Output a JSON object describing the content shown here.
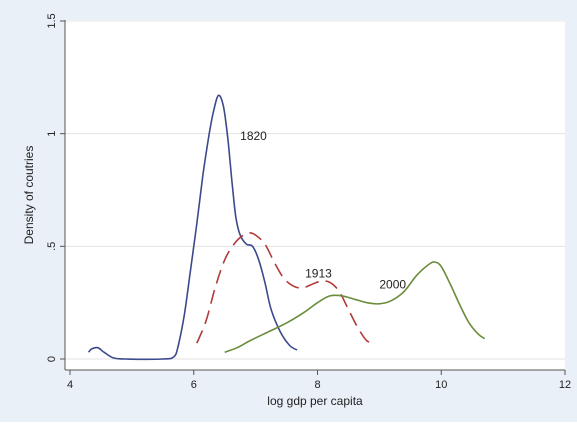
{
  "chart_data": {
    "type": "line",
    "title": "",
    "xlabel": "log gdp per capita",
    "ylabel": "Density of coutries",
    "xlim": [
      4,
      12
    ],
    "ylim": [
      0,
      1.5
    ],
    "x_ticks": [
      4,
      6,
      8,
      10,
      12
    ],
    "y_ticks": [
      0,
      0.5,
      1,
      1.5
    ],
    "x_tick_labels": [
      "4",
      "6",
      "8",
      "10",
      "12"
    ],
    "y_tick_labels": [
      "0",
      ".5",
      "1",
      "1.5"
    ],
    "grid": "horizontal",
    "legend": "none",
    "series": [
      {
        "name": "1820",
        "color": "#3b4a8c",
        "dash": "solid",
        "label_at": [
          6.75,
          0.99
        ],
        "points": [
          [
            4.3,
            0.03
          ],
          [
            4.35,
            0.045
          ],
          [
            4.45,
            0.05
          ],
          [
            4.55,
            0.03
          ],
          [
            4.7,
            0.005
          ],
          [
            4.9,
            0
          ],
          [
            5.5,
            0
          ],
          [
            5.68,
            0.01
          ],
          [
            5.75,
            0.06
          ],
          [
            5.85,
            0.2
          ],
          [
            5.95,
            0.4
          ],
          [
            6.05,
            0.6
          ],
          [
            6.15,
            0.82
          ],
          [
            6.25,
            1.0
          ],
          [
            6.32,
            1.1
          ],
          [
            6.4,
            1.17
          ],
          [
            6.48,
            1.12
          ],
          [
            6.55,
            0.98
          ],
          [
            6.62,
            0.78
          ],
          [
            6.68,
            0.63
          ],
          [
            6.75,
            0.55
          ],
          [
            6.85,
            0.51
          ],
          [
            6.95,
            0.5
          ],
          [
            7.05,
            0.44
          ],
          [
            7.15,
            0.34
          ],
          [
            7.25,
            0.22
          ],
          [
            7.4,
            0.12
          ],
          [
            7.55,
            0.06
          ],
          [
            7.67,
            0.04
          ]
        ]
      },
      {
        "name": "1913",
        "color": "#b23a3a",
        "dash": "dashed",
        "label_at": [
          7.8,
          0.38
        ],
        "points": [
          [
            6.05,
            0.07
          ],
          [
            6.2,
            0.17
          ],
          [
            6.35,
            0.32
          ],
          [
            6.5,
            0.44
          ],
          [
            6.65,
            0.51
          ],
          [
            6.8,
            0.55
          ],
          [
            6.9,
            0.56
          ],
          [
            7.0,
            0.55
          ],
          [
            7.15,
            0.51
          ],
          [
            7.3,
            0.43
          ],
          [
            7.45,
            0.36
          ],
          [
            7.6,
            0.325
          ],
          [
            7.75,
            0.315
          ],
          [
            7.9,
            0.33
          ],
          [
            8.05,
            0.345
          ],
          [
            8.2,
            0.34
          ],
          [
            8.35,
            0.3
          ],
          [
            8.5,
            0.22
          ],
          [
            8.65,
            0.14
          ],
          [
            8.8,
            0.08
          ],
          [
            8.9,
            0.08
          ]
        ]
      },
      {
        "name": "2000",
        "color": "#6b8c3b",
        "dash": "solid",
        "label_at": [
          9.0,
          0.33
        ],
        "points": [
          [
            6.5,
            0.03
          ],
          [
            6.7,
            0.05
          ],
          [
            6.9,
            0.08
          ],
          [
            7.2,
            0.12
          ],
          [
            7.5,
            0.16
          ],
          [
            7.8,
            0.21
          ],
          [
            8.0,
            0.25
          ],
          [
            8.2,
            0.28
          ],
          [
            8.4,
            0.28
          ],
          [
            8.6,
            0.265
          ],
          [
            8.8,
            0.25
          ],
          [
            9.0,
            0.245
          ],
          [
            9.2,
            0.26
          ],
          [
            9.4,
            0.3
          ],
          [
            9.6,
            0.37
          ],
          [
            9.8,
            0.42
          ],
          [
            9.9,
            0.43
          ],
          [
            10.0,
            0.41
          ],
          [
            10.15,
            0.33
          ],
          [
            10.3,
            0.24
          ],
          [
            10.45,
            0.16
          ],
          [
            10.6,
            0.11
          ],
          [
            10.7,
            0.09
          ]
        ]
      }
    ]
  }
}
